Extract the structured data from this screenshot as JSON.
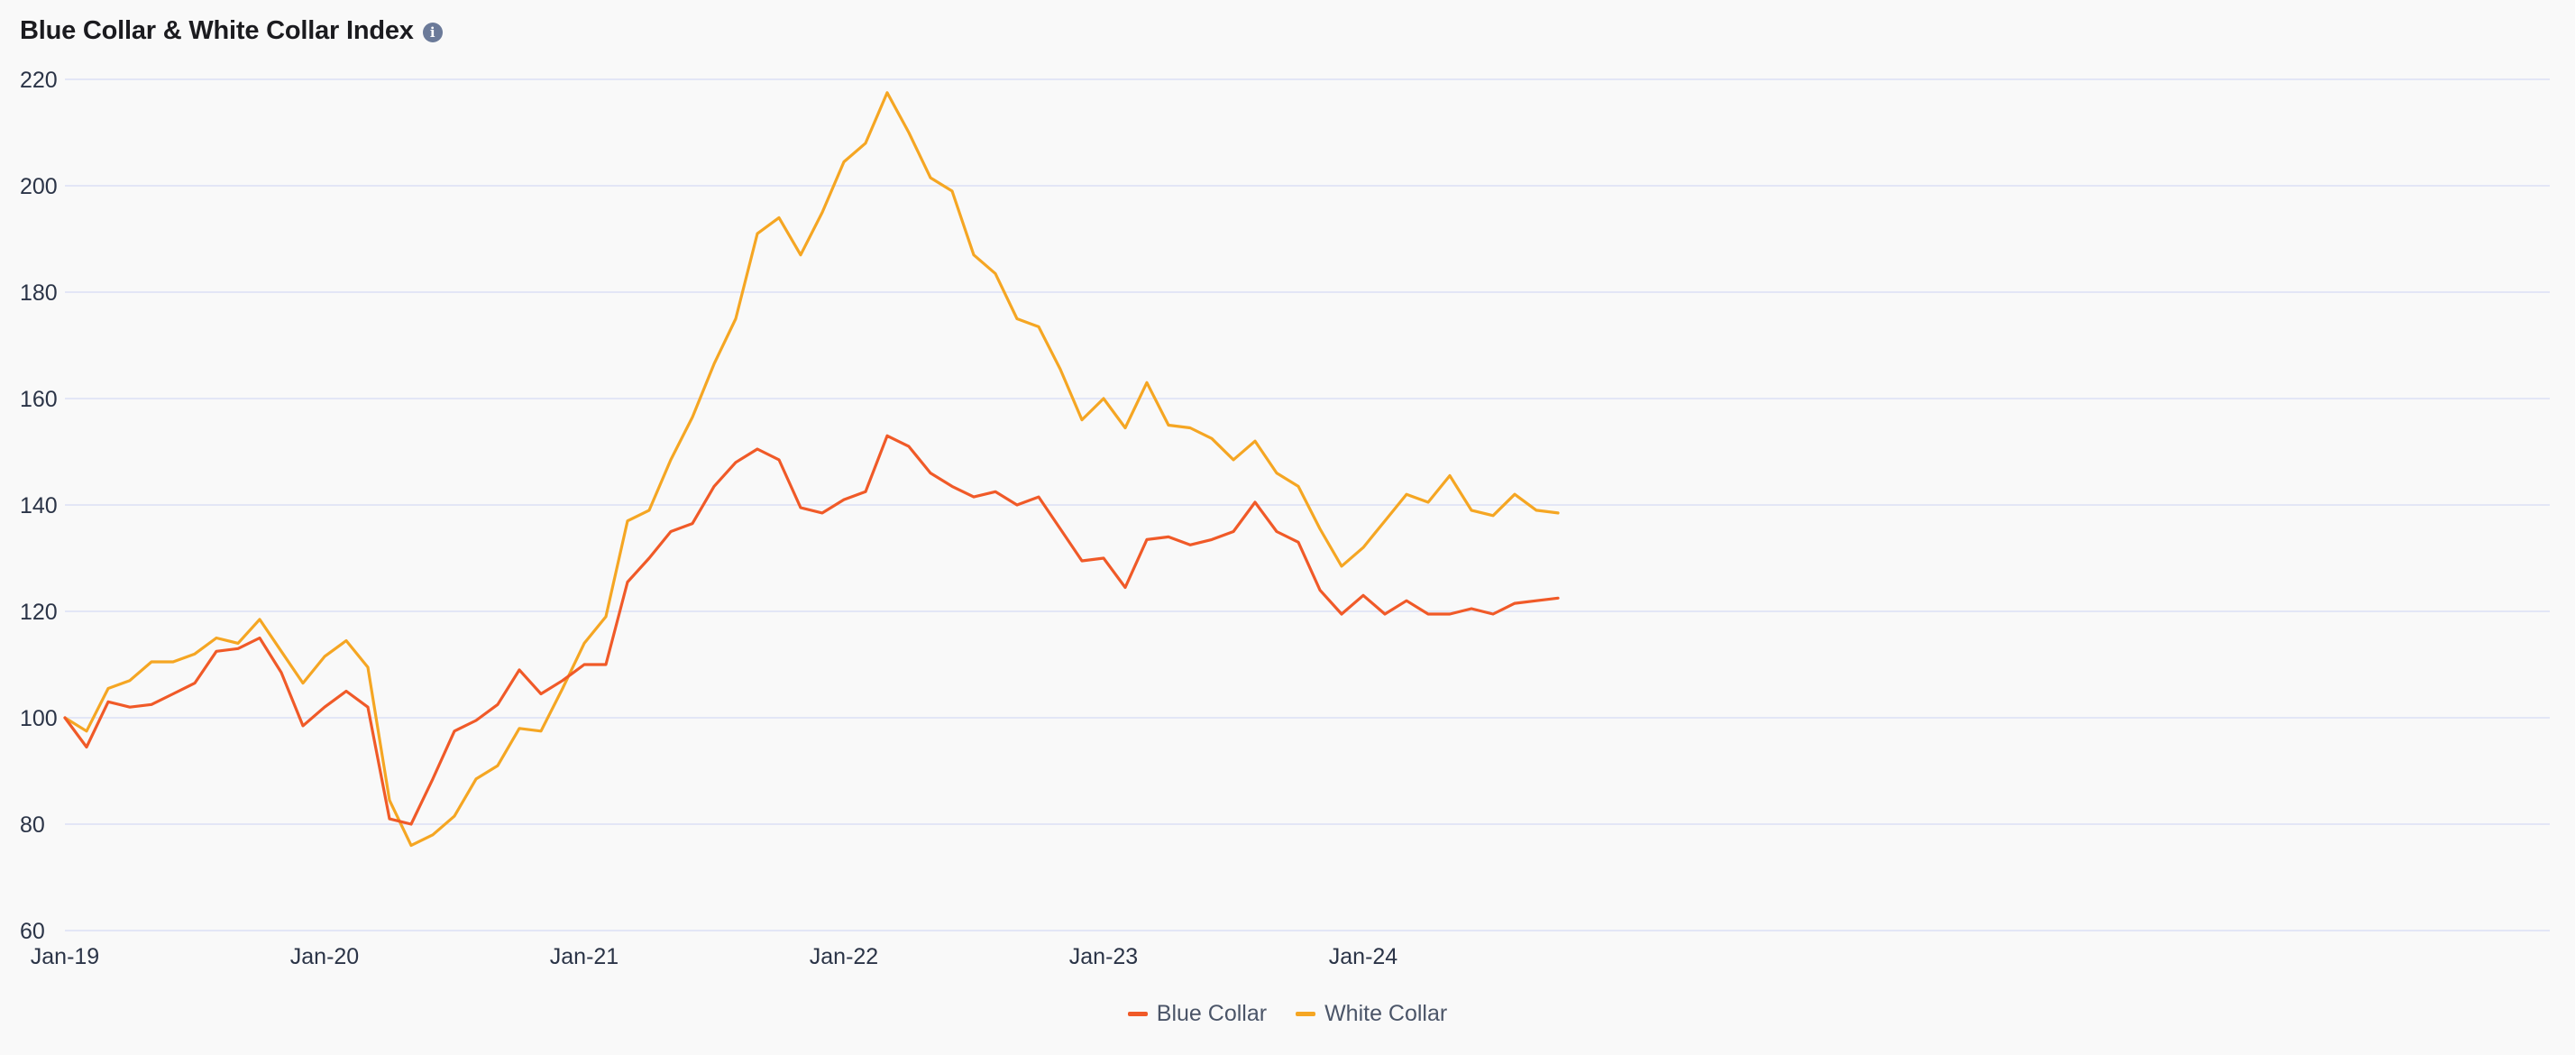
{
  "header": {
    "title": "Blue Collar & White Collar Index",
    "info_glyph": "i",
    "info_icon": "info-icon"
  },
  "chart_data": {
    "type": "line",
    "title": "Blue Collar & White Collar Index",
    "xlabel": "",
    "ylabel": "",
    "ylim": [
      60,
      220
    ],
    "y_ticks": [
      60,
      80,
      100,
      120,
      140,
      160,
      180,
      200,
      220
    ],
    "x_ticks": [
      {
        "label": "Jan-19",
        "x": "2019-01"
      },
      {
        "label": "Jan-20",
        "x": "2020-01"
      },
      {
        "label": "Jan-21",
        "x": "2021-01"
      },
      {
        "label": "Jan-22",
        "x": "2022-01"
      },
      {
        "label": "Jan-23",
        "x": "2023-01"
      },
      {
        "label": "Jan-24",
        "x": "2024-01"
      }
    ],
    "grid": true,
    "legend_position": "bottom-center",
    "x": [
      "2019-01",
      "2019-02",
      "2019-03",
      "2019-04",
      "2019-05",
      "2019-06",
      "2019-07",
      "2019-08",
      "2019-09",
      "2019-10",
      "2019-11",
      "2019-12",
      "2020-01",
      "2020-02",
      "2020-03",
      "2020-04",
      "2020-05",
      "2020-06",
      "2020-07",
      "2020-08",
      "2020-09",
      "2020-10",
      "2020-11",
      "2020-12",
      "2021-01",
      "2021-02",
      "2021-03",
      "2021-04",
      "2021-05",
      "2021-06",
      "2021-07",
      "2021-08",
      "2021-09",
      "2021-10",
      "2021-11",
      "2021-12",
      "2022-01",
      "2022-02",
      "2022-03",
      "2022-04",
      "2022-05",
      "2022-06",
      "2022-07",
      "2022-08",
      "2022-09",
      "2022-10",
      "2022-11",
      "2022-12",
      "2023-01",
      "2023-02",
      "2023-03",
      "2023-04",
      "2023-05",
      "2023-06",
      "2023-07",
      "2023-08",
      "2023-09",
      "2023-10",
      "2023-11",
      "2023-12",
      "2024-01",
      "2024-02",
      "2024-03",
      "2024-04",
      "2024-05",
      "2024-06",
      "2024-07",
      "2024-08",
      "2024-09",
      "2024-10"
    ],
    "series": [
      {
        "name": "Blue Collar",
        "color": "#f05a28",
        "values": [
          100,
          94.5,
          103,
          102,
          102.5,
          104.5,
          106.5,
          112.5,
          113,
          115,
          108.5,
          98.5,
          102,
          105,
          102,
          81,
          80,
          88.5,
          97.5,
          99.5,
          102.5,
          109,
          104.5,
          107,
          110,
          110,
          125.5,
          130,
          135,
          136.5,
          143.5,
          148,
          150.5,
          148.5,
          139.5,
          138.5,
          141,
          142.5,
          153,
          151,
          146,
          143.5,
          141.5,
          142.5,
          140,
          141.5,
          135.5,
          129.5,
          130,
          124.5,
          133.5,
          134,
          132.5,
          133.5,
          135,
          140.5,
          135,
          133,
          124,
          119.5,
          123,
          119.5,
          122,
          119.5,
          119.5,
          120.5,
          119.5,
          121.5,
          122,
          122.5
        ]
      },
      {
        "name": "White Collar",
        "color": "#f5a623",
        "values": [
          100,
          97.5,
          105.5,
          107,
          110.5,
          110.5,
          112,
          115,
          114,
          118.5,
          112.5,
          106.5,
          111.5,
          114.5,
          109.5,
          84.5,
          76,
          78,
          81.5,
          88.5,
          91,
          98,
          97.5,
          105.5,
          114,
          119,
          137,
          139,
          148.5,
          156.5,
          166.5,
          175,
          191,
          194,
          187,
          195,
          204.5,
          208,
          217.5,
          210,
          201.5,
          199,
          187,
          183.5,
          175,
          173.5,
          165.5,
          156,
          160,
          154.5,
          163,
          155,
          154.5,
          152.5,
          148.5,
          152,
          146,
          143.5,
          135.5,
          128.5,
          132,
          137,
          142,
          140.5,
          145.5,
          139,
          138,
          142,
          139,
          138.5
        ]
      }
    ]
  }
}
